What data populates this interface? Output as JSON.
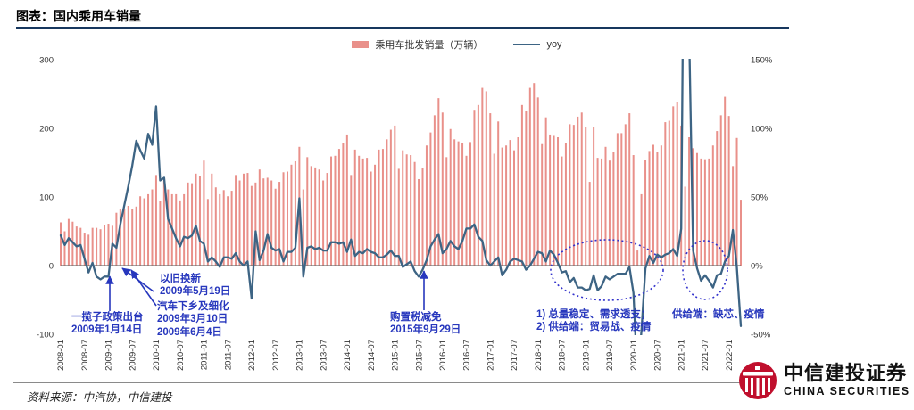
{
  "header": {
    "title": "图表：国内乘用车销量"
  },
  "legend": {
    "bar_label": "乘用车批发销量（万辆）",
    "line_label": "yoy"
  },
  "colors": {
    "bar": "#e9908a",
    "line": "#3d6484",
    "annotation": "#2737bd",
    "ellipse": "#3333cc",
    "title_rule": "#17375e",
    "axis": "#6e6e6e",
    "tick_text": "#333333",
    "logo_red": "#c00f2d"
  },
  "chart_data": {
    "type": "bar",
    "title": "国内乘用车销量",
    "x_start": "2008-01",
    "x_frequency": "monthly",
    "x_tick_labels": [
      "2008-01",
      "2008-07",
      "2009-01",
      "2009-07",
      "2010-01",
      "2010-07",
      "2011-01",
      "2011-07",
      "2012-01",
      "2012-07",
      "2013-01",
      "2013-07",
      "2014-01",
      "2014-07",
      "2015-01",
      "2015-07",
      "2016-01",
      "2016-07",
      "2017-01",
      "2017-07",
      "2018-01",
      "2018-07",
      "2019-01",
      "2019-07",
      "2020-01",
      "2020-07",
      "2021-01",
      "2021-07",
      "2022-01"
    ],
    "left_axis": {
      "ticks": [
        "300",
        "200",
        "100",
        "0",
        "-100"
      ],
      "tick_values": [
        300,
        200,
        100,
        0,
        -100
      ],
      "label": "乘用车批发销量（万辆）"
    },
    "right_axis": {
      "ticks": [
        "150%",
        "100%",
        "50%",
        "0%",
        "-50%"
      ],
      "tick_values": [
        150,
        100,
        50,
        0,
        -50
      ],
      "label": "yoy"
    },
    "legend_position": "top-center",
    "grid": false,
    "series": [
      {
        "name": "乘用车批发销量（万辆）",
        "type": "bar",
        "axis": "left",
        "values": [
          63,
          50,
          68,
          64,
          57,
          55,
          48,
          45,
          55,
          55,
          53,
          59,
          61,
          58,
          77,
          83,
          82,
          87,
          83,
          86,
          101,
          98,
          104,
          111,
          132,
          94,
          126,
          111,
          104,
          104,
          95,
          104,
          121,
          120,
          134,
          131,
          153,
          97,
          134,
          114,
          104,
          110,
          101,
          109,
          132,
          124,
          134,
          135,
          116,
          121,
          140,
          127,
          128,
          124,
          112,
          122,
          136,
          137,
          147,
          152,
          173,
          111,
          158,
          145,
          143,
          140,
          124,
          135,
          159,
          160,
          170,
          178,
          191,
          132,
          169,
          160,
          156,
          157,
          137,
          147,
          169,
          170,
          184,
          198,
          204,
          141,
          168,
          162,
          161,
          151,
          126,
          142,
          175,
          194,
          219,
          244,
          223,
          158,
          199,
          184,
          181,
          178,
          160,
          180,
          227,
          234,
          259,
          254,
          222,
          163,
          210,
          172,
          175,
          183,
          168,
          187,
          234,
          226,
          259,
          266,
          245,
          177,
          216,
          191,
          189,
          187,
          159,
          179,
          206,
          205,
          217,
          223,
          202,
          122,
          202,
          157,
          156,
          173,
          153,
          165,
          193,
          193,
          206,
          222,
          161,
          22,
          104,
          154,
          167,
          176,
          166,
          175,
          209,
          211,
          232,
          238,
          204,
          115,
          187,
          171,
          164,
          156,
          155,
          156,
          175,
          196,
          219,
          246,
          218,
          145,
          186,
          96
        ]
      },
      {
        "name": "yoy",
        "type": "line",
        "axis": "right",
        "values": [
          22,
          15,
          20,
          17,
          14,
          15,
          5,
          -5,
          2,
          -8,
          -10,
          -8,
          -8,
          16,
          13,
          30,
          44,
          58,
          73,
          91,
          84,
          78,
          96,
          88,
          116,
          62,
          64,
          34,
          27,
          20,
          14,
          21,
          20,
          22,
          29,
          18,
          16,
          3,
          6,
          3,
          -1,
          6,
          6,
          5,
          9,
          3,
          0,
          3,
          -24,
          25,
          4,
          11,
          23,
          13,
          11,
          12,
          3,
          10,
          10,
          13,
          49,
          -8,
          13,
          14,
          12,
          13,
          11,
          11,
          17,
          17,
          16,
          17,
          10,
          19,
          7,
          10,
          9,
          12,
          10,
          9,
          6,
          6,
          8,
          11,
          7,
          7,
          -1,
          1,
          3,
          -4,
          -8,
          -3,
          4,
          14,
          19,
          23,
          9,
          12,
          18,
          14,
          12,
          18,
          27,
          27,
          30,
          21,
          18,
          4,
          0,
          3,
          6,
          -7,
          -3,
          3,
          5,
          4,
          3,
          -3,
          0,
          5,
          10,
          9,
          3,
          11,
          8,
          2,
          -5,
          -4,
          -12,
          -9,
          -16,
          -16,
          -18,
          -17,
          -7,
          -18,
          -15,
          -8,
          -10,
          -8,
          -6,
          -6,
          -6,
          -1,
          -20,
          -82,
          -48,
          -2,
          7,
          2,
          8,
          6,
          8,
          9,
          12,
          7,
          27,
          371,
          170,
          11,
          -2,
          -11,
          -7,
          -11,
          -16,
          -7,
          -6,
          3,
          7,
          26,
          -1,
          -44
        ]
      }
    ]
  },
  "annotations": {
    "policy_package": "一揽子政策出台\n2009年1月14日",
    "trade_in": "以旧换新\n2009年5月19日",
    "car_to_countryside": "汽车下乡及细化\n2009年3月10日\n2009年6月4日",
    "tax_cut": "购置税减免\n2015年9月29日",
    "demand_note": "1) 总量稳定、需求透支；\n2) 供给端：贸易战、疫情",
    "supply_note": "供给端：缺芯、疫情"
  },
  "footer": {
    "source": "资料来源：中汽协，中信建投"
  },
  "logo": {
    "cn": "中信建投证券",
    "en": "CHINA SECURITIES"
  }
}
